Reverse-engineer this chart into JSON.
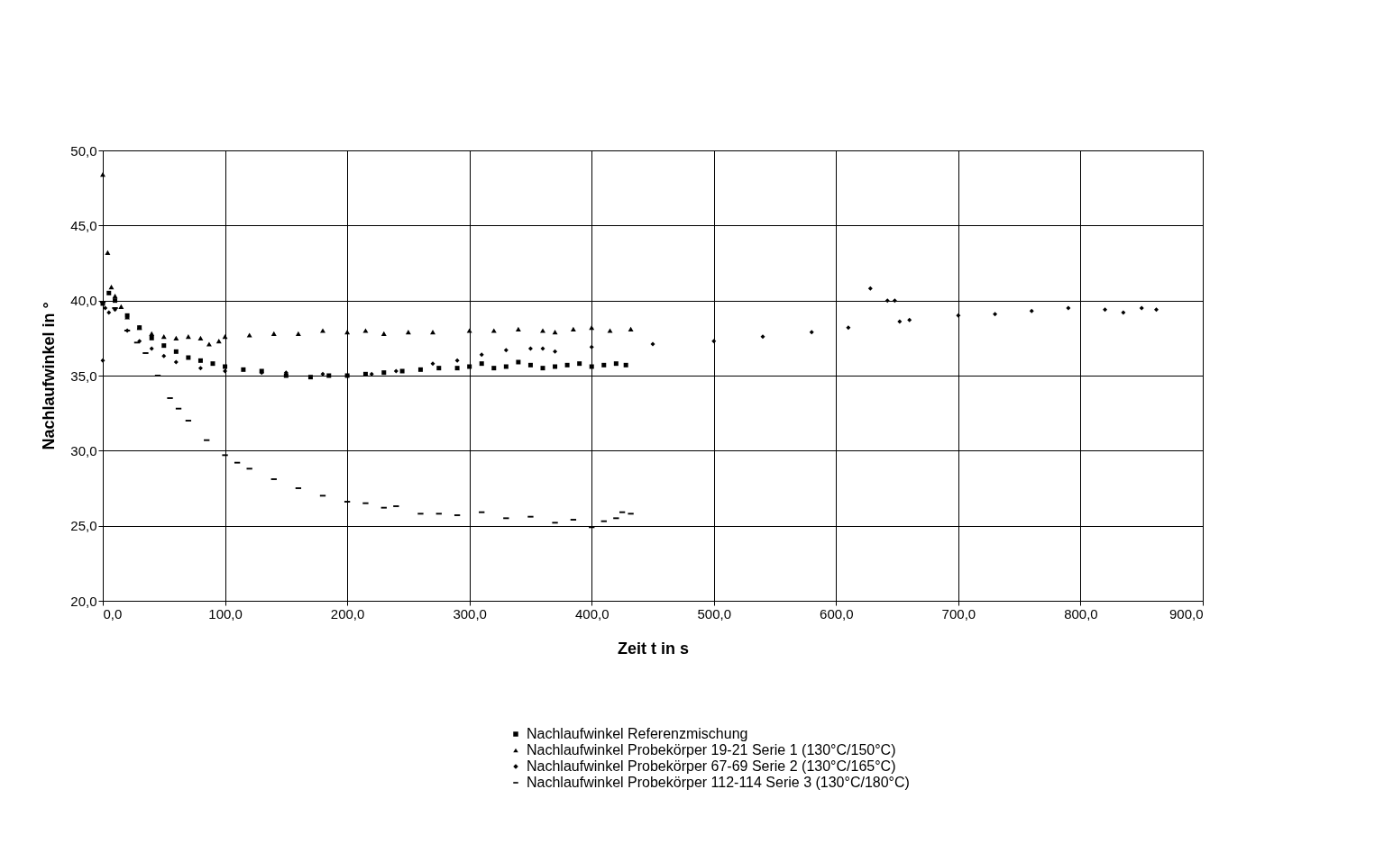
{
  "chart_data": {
    "type": "scatter",
    "xlabel": "Zeit t in s",
    "ylabel": "Nachlaufwinkel in °",
    "xlim": [
      0,
      900
    ],
    "ylim": [
      20,
      50
    ],
    "xticks": [
      {
        "value": 0,
        "label": "0,0"
      },
      {
        "value": 100,
        "label": "100,0"
      },
      {
        "value": 200,
        "label": "200,0"
      },
      {
        "value": 300,
        "label": "300,0"
      },
      {
        "value": 400,
        "label": "400,0"
      },
      {
        "value": 500,
        "label": "500,0"
      },
      {
        "value": 600,
        "label": "600,0"
      },
      {
        "value": 700,
        "label": "700,0"
      },
      {
        "value": 800,
        "label": "800,0"
      },
      {
        "value": 900,
        "label": "900,0"
      }
    ],
    "yticks": [
      {
        "value": 20,
        "label": "20,0"
      },
      {
        "value": 25,
        "label": "25,0"
      },
      {
        "value": 30,
        "label": "30,0"
      },
      {
        "value": 35,
        "label": "35,0"
      },
      {
        "value": 40,
        "label": "40,0"
      },
      {
        "value": 45,
        "label": "45,0"
      },
      {
        "value": 50,
        "label": "50,0"
      }
    ],
    "grid": true,
    "legend": "bottom",
    "series": [
      {
        "name": "Nachlaufwinkel Referenzmischung",
        "color": "#000000",
        "marker": "square",
        "x": [
          0,
          5,
          10,
          20,
          30,
          40,
          50,
          60,
          70,
          80,
          90,
          100,
          115,
          130,
          150,
          170,
          185,
          200,
          215,
          230,
          245,
          260,
          275,
          290,
          300,
          310,
          320,
          330,
          340,
          350,
          360,
          370,
          380,
          390,
          400,
          410,
          420,
          428
        ],
        "values": [
          39.8,
          40.5,
          40.0,
          39.0,
          38.2,
          37.5,
          37.0,
          36.6,
          36.2,
          36.0,
          35.8,
          35.6,
          35.4,
          35.3,
          35.0,
          34.9,
          35.0,
          35.0,
          35.1,
          35.2,
          35.3,
          35.4,
          35.5,
          35.5,
          35.6,
          35.8,
          35.5,
          35.6,
          35.9,
          35.7,
          35.5,
          35.6,
          35.7,
          35.8,
          35.6,
          35.7,
          35.8,
          35.7
        ]
      },
      {
        "name": "Nachlaufwinkel Probekörper 19-21 Serie 1 (130°C/150°C)",
        "color": "#000000",
        "marker": "triangle",
        "x": [
          0,
          4,
          7,
          10,
          15,
          20,
          30,
          40,
          50,
          60,
          70,
          80,
          87,
          95,
          100,
          120,
          140,
          160,
          180,
          200,
          215,
          230,
          250,
          270,
          300,
          320,
          340,
          360,
          370,
          385,
          400,
          415,
          432
        ],
        "values": [
          48.4,
          43.2,
          40.9,
          40.3,
          39.6,
          38.9,
          38.2,
          37.8,
          37.6,
          37.5,
          37.6,
          37.5,
          37.1,
          37.3,
          37.6,
          37.7,
          37.8,
          37.8,
          38.0,
          37.9,
          38.0,
          37.8,
          37.9,
          37.9,
          38.0,
          38.0,
          38.1,
          38.0,
          37.9,
          38.1,
          38.2,
          38.0,
          38.1
        ]
      },
      {
        "name": "Nachlaufwinkel Probekörper 67-69  Serie 2 (130°C/165°C)",
        "color": "#000000",
        "marker": "diamond",
        "x": [
          0,
          2,
          5,
          10,
          20,
          30,
          40,
          50,
          60,
          80,
          100,
          130,
          150,
          180,
          200,
          220,
          240,
          270,
          290,
          310,
          330,
          350,
          360,
          370,
          400,
          450,
          500,
          540,
          580,
          610,
          628,
          642,
          648,
          652,
          660,
          700,
          730,
          760,
          790,
          820,
          835,
          850,
          862
        ],
        "values": [
          36.0,
          39.5,
          39.2,
          39.4,
          38.0,
          37.3,
          36.8,
          36.3,
          35.9,
          35.5,
          35.3,
          35.2,
          35.2,
          35.1,
          35.0,
          35.1,
          35.3,
          35.8,
          36.0,
          36.4,
          36.7,
          36.8,
          36.8,
          36.6,
          36.9,
          37.1,
          37.3,
          37.6,
          37.9,
          38.2,
          40.8,
          40.0,
          40.0,
          38.6,
          38.7,
          39.0,
          39.1,
          39.3,
          39.5,
          39.4,
          39.2,
          39.5,
          39.4
        ]
      },
      {
        "name": "Nachlaufwinkel Probekörper 112-114 Serie 3 (130°C/180°C)",
        "color": "#000000",
        "x": [
          0,
          10,
          20,
          28,
          35,
          45,
          55,
          62,
          70,
          85,
          100,
          110,
          120,
          140,
          160,
          180,
          200,
          215,
          230,
          240,
          260,
          275,
          290,
          310,
          330,
          350,
          370,
          385,
          400,
          410,
          420,
          425,
          432
        ],
        "values": [
          39.9,
          39.5,
          38.0,
          37.2,
          36.5,
          35.0,
          33.5,
          32.8,
          32.0,
          30.7,
          29.7,
          29.2,
          28.8,
          28.1,
          27.5,
          27.0,
          26.6,
          26.5,
          26.2,
          26.3,
          25.8,
          25.8,
          25.7,
          25.9,
          25.5,
          25.6,
          25.2,
          25.4,
          24.9,
          25.3,
          25.5,
          25.9,
          25.8
        ]
      }
    ]
  }
}
